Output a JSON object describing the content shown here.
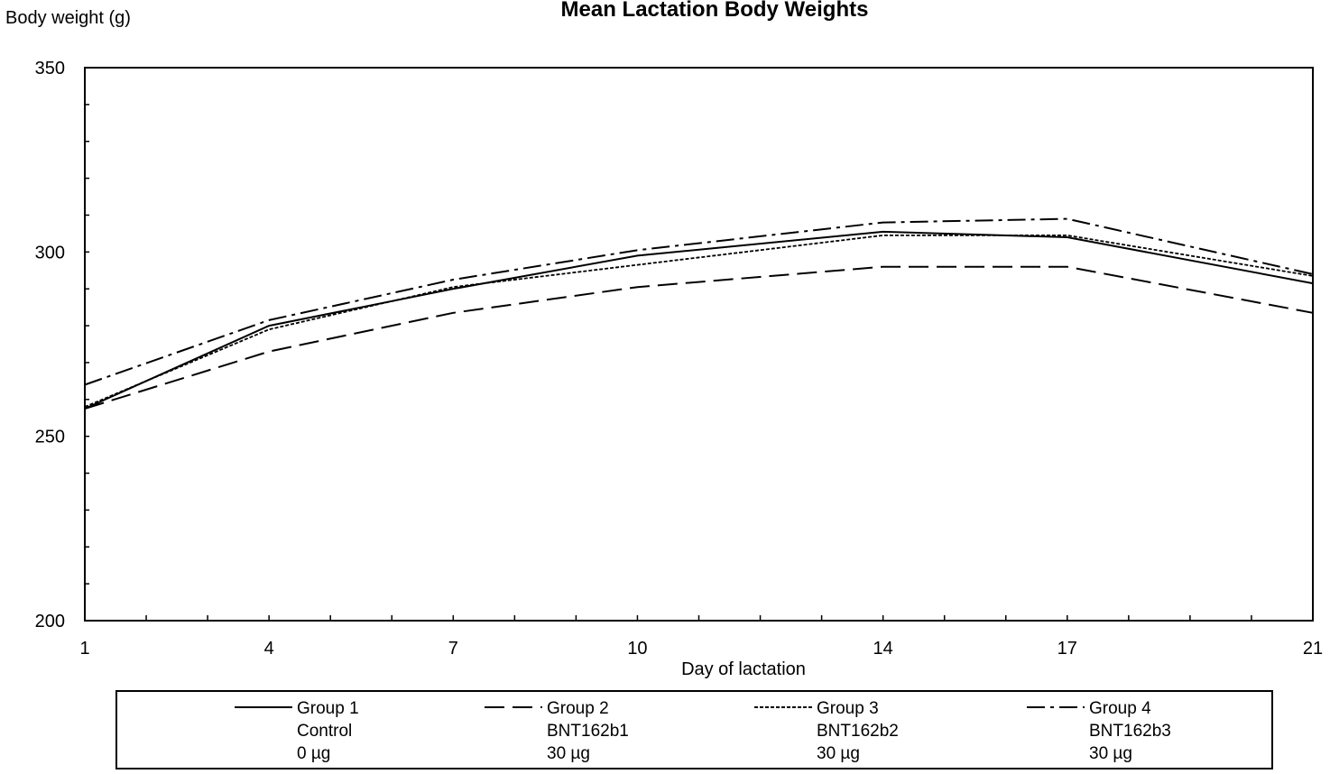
{
  "chart_data": {
    "type": "line",
    "title": "Mean Lactation Body Weights",
    "ylabel": "Body weight (g)",
    "xlabel": "Day of lactation",
    "xlim": [
      1,
      21
    ],
    "ylim": [
      200,
      350
    ],
    "x_ticks": [
      1,
      4,
      7,
      10,
      14,
      17,
      21
    ],
    "y_ticks": [
      200,
      250,
      300,
      350
    ],
    "x": [
      1,
      4,
      7,
      10,
      14,
      17,
      21
    ],
    "grid": false,
    "legend_placement": "bottom",
    "series": [
      {
        "name": "Group 1",
        "line1": "Control",
        "line2": "0 µg",
        "dash": "solid",
        "values": [
          257.5,
          280,
          290,
          299,
          305.5,
          304,
          291.5
        ]
      },
      {
        "name": "Group 2",
        "line1": "BNT162b1",
        "line2": "30 µg",
        "dash": "long-dash",
        "values": [
          257.5,
          273,
          283.5,
          290.5,
          296,
          296,
          283.5
        ]
      },
      {
        "name": "Group 3",
        "line1": "BNT162b2",
        "line2": "30 µg",
        "dash": "dotted",
        "values": [
          258,
          279,
          290.5,
          296.5,
          304.5,
          304.5,
          293.5
        ]
      },
      {
        "name": "Group 4",
        "line1": "BNT162b3",
        "line2": "30 µg",
        "dash": "dash-dot",
        "values": [
          264,
          281.5,
          292.5,
          300.5,
          308,
          309,
          294
        ]
      }
    ]
  }
}
